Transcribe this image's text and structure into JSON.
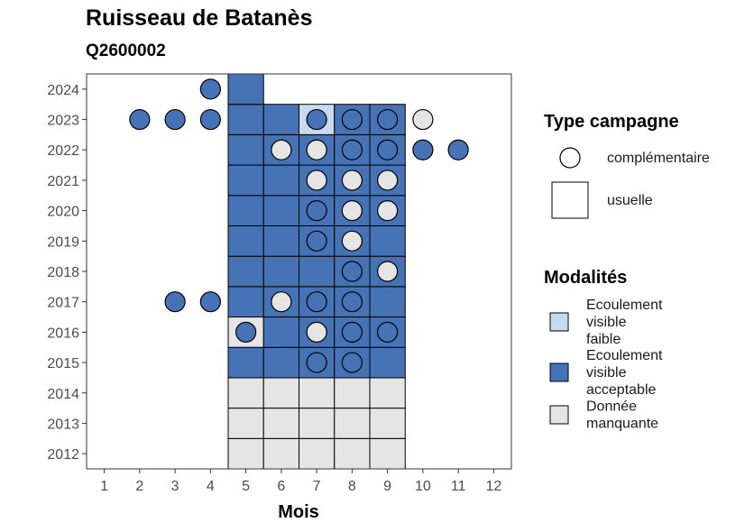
{
  "title": "Ruisseau de Batanès",
  "subtitle": "Q2600002",
  "chart_data": {
    "type": "heatmap",
    "xlabel": "Mois",
    "ylabel": "",
    "x_ticks": [
      1,
      2,
      3,
      4,
      5,
      6,
      7,
      8,
      9,
      10,
      11,
      12
    ],
    "y_ticks": [
      2012,
      2013,
      2014,
      2015,
      2016,
      2017,
      2018,
      2019,
      2020,
      2021,
      2022,
      2023,
      2024
    ],
    "xlim": [
      0.5,
      12.5
    ],
    "ylim": [
      2011.5,
      2024.5
    ],
    "modalites": [
      {
        "key": "faible",
        "label_lines": [
          "Ecoulement",
          "visible",
          "faible"
        ],
        "color": "#c6dbef"
      },
      {
        "key": "acceptable",
        "label_lines": [
          "Ecoulement",
          "visible",
          "acceptable"
        ],
        "color": "#4573b6"
      },
      {
        "key": "manquante",
        "label_lines": [
          "Donnée",
          "manquante"
        ],
        "color": "#e5e5e5"
      }
    ],
    "type_campagne": [
      {
        "key": "complementaire",
        "label": "complémentaire",
        "shape": "circle"
      },
      {
        "key": "usuelle",
        "label": "usuelle",
        "shape": "square"
      }
    ],
    "legend_titles": {
      "type": "Type campagne",
      "modalites": "Modalités"
    },
    "tiles": [
      {
        "year": 2012,
        "month": 5,
        "v": "manquante"
      },
      {
        "year": 2012,
        "month": 6,
        "v": "manquante"
      },
      {
        "year": 2012,
        "month": 7,
        "v": "manquante"
      },
      {
        "year": 2012,
        "month": 8,
        "v": "manquante"
      },
      {
        "year": 2012,
        "month": 9,
        "v": "manquante"
      },
      {
        "year": 2013,
        "month": 5,
        "v": "manquante"
      },
      {
        "year": 2013,
        "month": 6,
        "v": "manquante"
      },
      {
        "year": 2013,
        "month": 7,
        "v": "manquante"
      },
      {
        "year": 2013,
        "month": 8,
        "v": "manquante"
      },
      {
        "year": 2013,
        "month": 9,
        "v": "manquante"
      },
      {
        "year": 2014,
        "month": 5,
        "v": "manquante"
      },
      {
        "year": 2014,
        "month": 6,
        "v": "manquante"
      },
      {
        "year": 2014,
        "month": 7,
        "v": "manquante"
      },
      {
        "year": 2014,
        "month": 8,
        "v": "manquante"
      },
      {
        "year": 2014,
        "month": 9,
        "v": "manquante"
      },
      {
        "year": 2015,
        "month": 5,
        "v": "acceptable"
      },
      {
        "year": 2015,
        "month": 6,
        "v": "acceptable"
      },
      {
        "year": 2015,
        "month": 7,
        "v": "acceptable"
      },
      {
        "year": 2015,
        "month": 8,
        "v": "acceptable"
      },
      {
        "year": 2015,
        "month": 9,
        "v": "acceptable"
      },
      {
        "year": 2016,
        "month": 5,
        "v": "manquante"
      },
      {
        "year": 2016,
        "month": 6,
        "v": "acceptable"
      },
      {
        "year": 2016,
        "month": 7,
        "v": "acceptable"
      },
      {
        "year": 2016,
        "month": 8,
        "v": "acceptable"
      },
      {
        "year": 2016,
        "month": 9,
        "v": "acceptable"
      },
      {
        "year": 2017,
        "month": 5,
        "v": "acceptable"
      },
      {
        "year": 2017,
        "month": 6,
        "v": "acceptable"
      },
      {
        "year": 2017,
        "month": 7,
        "v": "acceptable"
      },
      {
        "year": 2017,
        "month": 8,
        "v": "acceptable"
      },
      {
        "year": 2017,
        "month": 9,
        "v": "acceptable"
      },
      {
        "year": 2018,
        "month": 5,
        "v": "acceptable"
      },
      {
        "year": 2018,
        "month": 6,
        "v": "acceptable"
      },
      {
        "year": 2018,
        "month": 7,
        "v": "acceptable"
      },
      {
        "year": 2018,
        "month": 8,
        "v": "acceptable"
      },
      {
        "year": 2018,
        "month": 9,
        "v": "acceptable"
      },
      {
        "year": 2019,
        "month": 5,
        "v": "acceptable"
      },
      {
        "year": 2019,
        "month": 6,
        "v": "acceptable"
      },
      {
        "year": 2019,
        "month": 7,
        "v": "acceptable"
      },
      {
        "year": 2019,
        "month": 8,
        "v": "acceptable"
      },
      {
        "year": 2019,
        "month": 9,
        "v": "acceptable"
      },
      {
        "year": 2020,
        "month": 5,
        "v": "acceptable"
      },
      {
        "year": 2020,
        "month": 6,
        "v": "acceptable"
      },
      {
        "year": 2020,
        "month": 7,
        "v": "acceptable"
      },
      {
        "year": 2020,
        "month": 8,
        "v": "acceptable"
      },
      {
        "year": 2020,
        "month": 9,
        "v": "acceptable"
      },
      {
        "year": 2021,
        "month": 5,
        "v": "acceptable"
      },
      {
        "year": 2021,
        "month": 6,
        "v": "acceptable"
      },
      {
        "year": 2021,
        "month": 7,
        "v": "acceptable"
      },
      {
        "year": 2021,
        "month": 8,
        "v": "acceptable"
      },
      {
        "year": 2021,
        "month": 9,
        "v": "acceptable"
      },
      {
        "year": 2022,
        "month": 5,
        "v": "acceptable"
      },
      {
        "year": 2022,
        "month": 6,
        "v": "acceptable"
      },
      {
        "year": 2022,
        "month": 7,
        "v": "acceptable"
      },
      {
        "year": 2022,
        "month": 8,
        "v": "acceptable"
      },
      {
        "year": 2022,
        "month": 9,
        "v": "acceptable"
      },
      {
        "year": 2023,
        "month": 5,
        "v": "acceptable"
      },
      {
        "year": 2023,
        "month": 6,
        "v": "acceptable"
      },
      {
        "year": 2023,
        "month": 7,
        "v": "faible"
      },
      {
        "year": 2023,
        "month": 8,
        "v": "acceptable"
      },
      {
        "year": 2023,
        "month": 9,
        "v": "acceptable"
      },
      {
        "year": 2024,
        "month": 5,
        "v": "acceptable"
      }
    ],
    "points": [
      {
        "year": 2024,
        "month": 4,
        "v": "acceptable"
      },
      {
        "year": 2023,
        "month": 2,
        "v": "acceptable"
      },
      {
        "year": 2023,
        "month": 3,
        "v": "acceptable"
      },
      {
        "year": 2023,
        "month": 4,
        "v": "acceptable"
      },
      {
        "year": 2023,
        "month": 7,
        "v": "acceptable"
      },
      {
        "year": 2023,
        "month": 8,
        "v": "acceptable"
      },
      {
        "year": 2023,
        "month": 9,
        "v": "acceptable"
      },
      {
        "year": 2023,
        "month": 10,
        "v": "manquante"
      },
      {
        "year": 2022,
        "month": 6,
        "v": "manquante"
      },
      {
        "year": 2022,
        "month": 7,
        "v": "manquante"
      },
      {
        "year": 2022,
        "month": 8,
        "v": "acceptable"
      },
      {
        "year": 2022,
        "month": 9,
        "v": "acceptable"
      },
      {
        "year": 2022,
        "month": 10,
        "v": "acceptable"
      },
      {
        "year": 2022,
        "month": 11,
        "v": "acceptable"
      },
      {
        "year": 2021,
        "month": 7,
        "v": "manquante"
      },
      {
        "year": 2021,
        "month": 8,
        "v": "manquante"
      },
      {
        "year": 2021,
        "month": 9,
        "v": "manquante"
      },
      {
        "year": 2020,
        "month": 7,
        "v": "acceptable"
      },
      {
        "year": 2020,
        "month": 8,
        "v": "manquante"
      },
      {
        "year": 2020,
        "month": 9,
        "v": "manquante"
      },
      {
        "year": 2019,
        "month": 7,
        "v": "acceptable"
      },
      {
        "year": 2019,
        "month": 8,
        "v": "manquante"
      },
      {
        "year": 2018,
        "month": 8,
        "v": "acceptable"
      },
      {
        "year": 2018,
        "month": 9,
        "v": "manquante"
      },
      {
        "year": 2017,
        "month": 3,
        "v": "acceptable"
      },
      {
        "year": 2017,
        "month": 4,
        "v": "acceptable"
      },
      {
        "year": 2017,
        "month": 6,
        "v": "manquante"
      },
      {
        "year": 2017,
        "month": 7,
        "v": "acceptable"
      },
      {
        "year": 2017,
        "month": 8,
        "v": "acceptable"
      },
      {
        "year": 2016,
        "month": 5,
        "v": "acceptable"
      },
      {
        "year": 2016,
        "month": 7,
        "v": "manquante"
      },
      {
        "year": 2016,
        "month": 8,
        "v": "acceptable"
      },
      {
        "year": 2016,
        "month": 9,
        "v": "acceptable"
      },
      {
        "year": 2015,
        "month": 7,
        "v": "acceptable"
      },
      {
        "year": 2015,
        "month": 8,
        "v": "acceptable"
      }
    ]
  }
}
